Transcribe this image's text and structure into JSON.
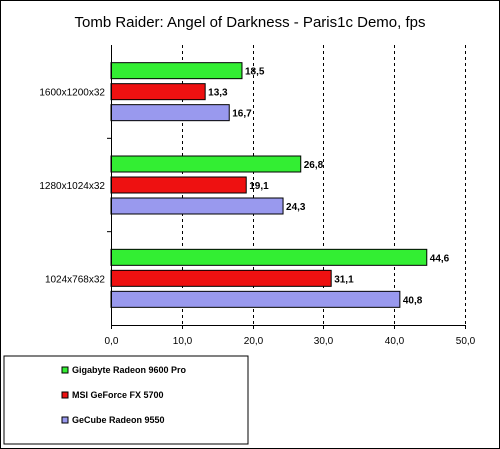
{
  "chart_data": {
    "type": "bar",
    "orientation": "horizontal",
    "title": "Tomb Raider: Angel of Darkness - Paris1c Demo, fps",
    "categories": [
      "1600x1200x32",
      "1280x1024x32",
      "1024x768x32"
    ],
    "series": [
      {
        "name": "Gigabyte Radeon 9600 Pro",
        "color": "#33ee33",
        "values": [
          18.5,
          26.8,
          44.6
        ],
        "labels": [
          "18,5",
          "26,8",
          "44,6"
        ]
      },
      {
        "name": "MSI GeForce FX 5700",
        "color": "#ee1111",
        "values": [
          13.3,
          19.1,
          31.1
        ],
        "labels": [
          "13,3",
          "19,1",
          "31,1"
        ]
      },
      {
        "name": "GeCube Radeon 9550",
        "color": "#9999ee",
        "values": [
          16.7,
          24.3,
          40.8
        ],
        "labels": [
          "16,7",
          "24,3",
          "40,8"
        ]
      }
    ],
    "xlim": [
      0,
      50
    ],
    "xticks": [
      0,
      10,
      20,
      30,
      40,
      50
    ],
    "xtick_labels": [
      "0,0",
      "10,0",
      "20,0",
      "30,0",
      "40,0",
      "50,0"
    ],
    "grid": "vertical dashed",
    "legend": "bottom-left"
  }
}
